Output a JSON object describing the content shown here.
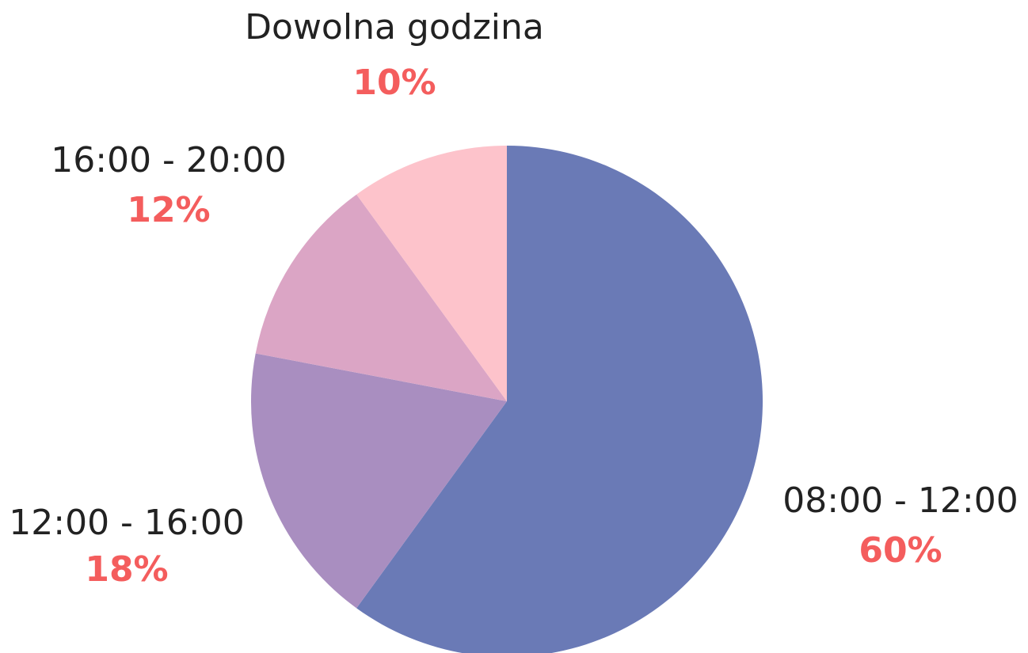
{
  "chart_data": {
    "type": "pie",
    "categories": [
      "08:00 - 12:00",
      "12:00 - 16:00",
      "16:00 - 20:00",
      "Dowolna godzina"
    ],
    "values": [
      60,
      18,
      12,
      10
    ],
    "value_labels": [
      "60%",
      "18%",
      "12%",
      "10%"
    ],
    "colors": [
      "#6a7ab6",
      "#a98ec0",
      "#dba5c5",
      "#fdc3cb"
    ]
  }
}
